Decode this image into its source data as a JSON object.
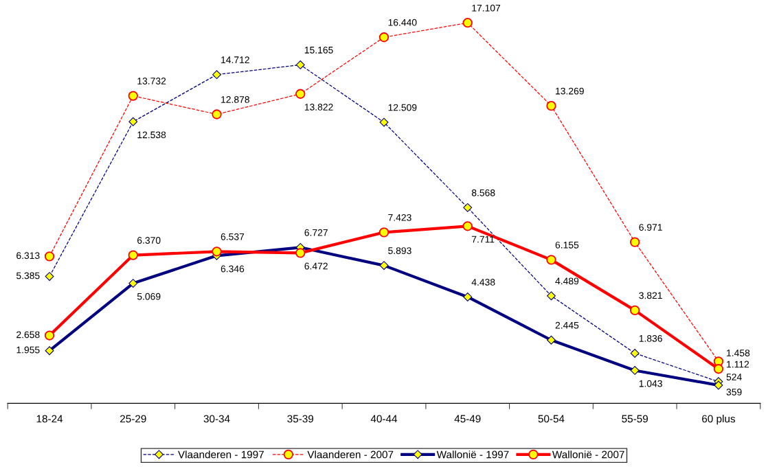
{
  "chart_data": {
    "type": "line",
    "categories": [
      "18-24",
      "25-29",
      "30-34",
      "35-39",
      "40-44",
      "45-49",
      "50-54",
      "55-59",
      "60 plus"
    ],
    "series": [
      {
        "name": "Vlaanderen - 1997",
        "color": "#000080",
        "marker": "diamond",
        "line_style": "dashed",
        "values": [
          5385,
          12538,
          14712,
          15165,
          12509,
          8568,
          4489,
          1836,
          524
        ],
        "value_labels": [
          "5.385",
          "12.538",
          "14.712",
          "15.165",
          "12.509",
          "8.568",
          "4.489",
          "1.836",
          "524"
        ]
      },
      {
        "name": "Vlaanderen - 2007",
        "color": "#ff0000",
        "marker": "circle",
        "line_style": "dashed",
        "values": [
          6313,
          13732,
          12878,
          13822,
          16440,
          17107,
          13269,
          6971,
          1458
        ],
        "value_labels": [
          "6.313",
          "13.732",
          "12.878",
          "13.822",
          "16.440",
          "17.107",
          "13.269",
          "6.971",
          "1.458"
        ]
      },
      {
        "name": "Wallonië - 1997",
        "color": "#000080",
        "marker": "diamond",
        "line_style": "solid",
        "values": [
          1955,
          5069,
          6346,
          6727,
          5893,
          4438,
          2445,
          1043,
          359
        ],
        "value_labels": [
          "1.955",
          "5.069",
          "6.346",
          "6.727",
          "5.893",
          "4.438",
          "2.445",
          "1.043",
          "359"
        ]
      },
      {
        "name": "Wallonië - 2007",
        "color": "#ff0000",
        "marker": "circle",
        "line_style": "solid",
        "values": [
          2658,
          6370,
          6537,
          6472,
          7423,
          7711,
          6155,
          3821,
          1112
        ],
        "value_labels": [
          "2.658",
          "6.370",
          "6.537",
          "6.472",
          "7.423",
          "7.711",
          "6.155",
          "3.821",
          "1.112"
        ]
      }
    ],
    "legend": "bottom",
    "grid": false
  }
}
